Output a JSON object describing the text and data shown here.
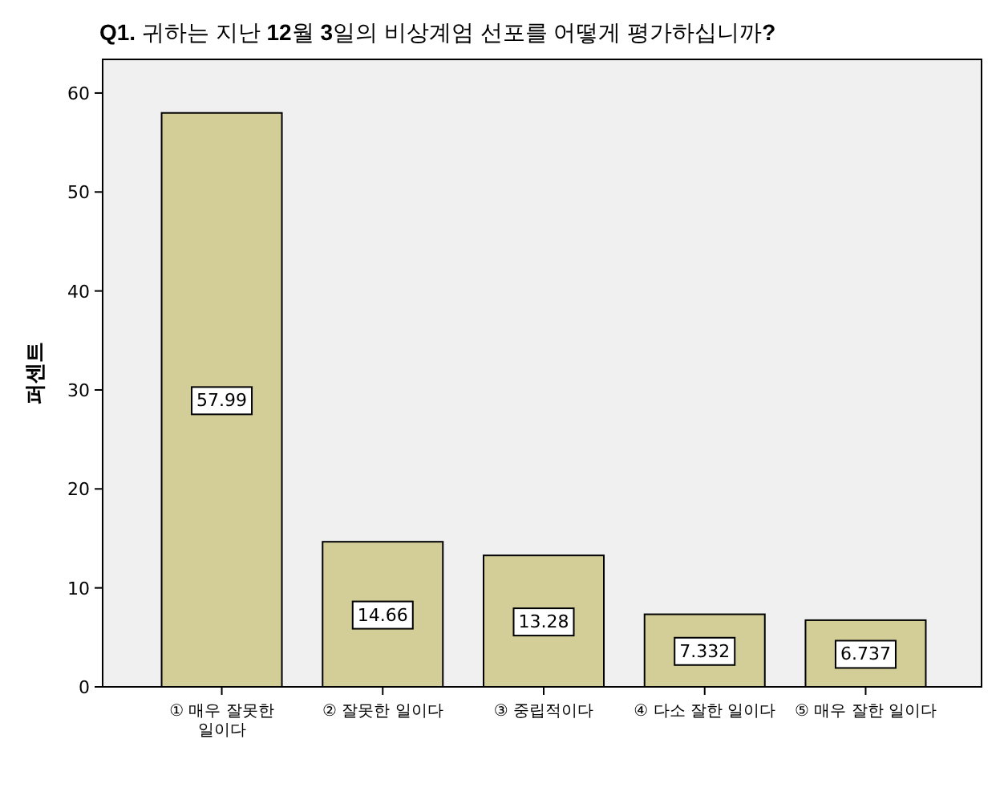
{
  "chart_data": {
    "type": "bar",
    "title": "Q1. 귀하는 지난 12월 3일의 비상계엄 선포를 어떻게 평가하십니까?",
    "ylabel": "퍼센트",
    "categories": [
      "① 매우 잘못한 일이다",
      "② 잘못한 일이다",
      "③ 중립적이다",
      "④ 다소 잘한 일이다",
      "⑤ 매우 잘한 일이다"
    ],
    "values": [
      57.99,
      14.66,
      13.28,
      7.332,
      6.737
    ],
    "color": "#d3ce97",
    "ylim": [
      0,
      63.4
    ],
    "yticks": [
      0,
      10,
      20,
      30,
      40,
      50,
      60
    ],
    "data_labels": true
  }
}
